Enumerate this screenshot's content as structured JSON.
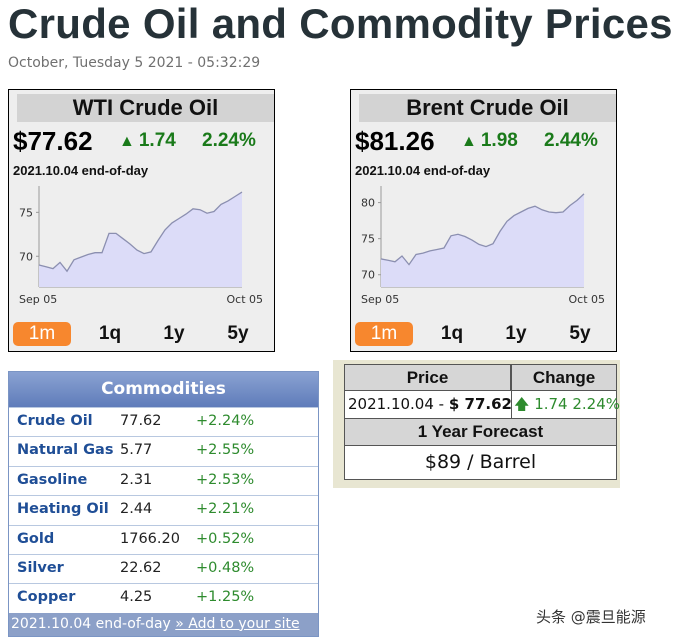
{
  "header": {
    "title": "Crude Oil and Commodity Prices",
    "datetime": "October, Tuesday 5 2021 - 05:32:29"
  },
  "wti": {
    "title": "WTI Crude Oil",
    "price": "$77.62",
    "change": "1.74",
    "change_pct": "2.24%",
    "eod": "2021.10.04 end-of-day",
    "chart_data": {
      "type": "area",
      "x_start_label": "Sep 05",
      "x_end_label": "Oct 05",
      "yticks": [
        70,
        75
      ],
      "ylim": [
        66.5,
        78
      ],
      "values": [
        69.0,
        68.8,
        68.6,
        69.3,
        68.3,
        69.6,
        69.9,
        70.2,
        70.4,
        70.4,
        72.6,
        72.6,
        72.0,
        71.4,
        70.7,
        70.3,
        70.5,
        71.8,
        73.0,
        73.8,
        74.3,
        74.8,
        75.4,
        75.3,
        74.9,
        75.1,
        75.9,
        76.3,
        76.8,
        77.3
      ]
    },
    "ranges": [
      "1m",
      "1q",
      "1y",
      "5y"
    ],
    "active_range": "1m"
  },
  "brent": {
    "title": "Brent Crude Oil",
    "price": "$81.26",
    "change": "1.98",
    "change_pct": "2.44%",
    "eod": "2021.10.04 end-of-day",
    "chart_data": {
      "type": "area",
      "x_start_label": "Sep 05",
      "x_end_label": "Oct 05",
      "yticks": [
        70,
        75,
        80
      ],
      "ylim": [
        68.3,
        82.3
      ],
      "values": [
        72.2,
        72.0,
        71.8,
        72.6,
        71.4,
        72.8,
        73.0,
        73.3,
        73.5,
        73.7,
        75.4,
        75.6,
        75.3,
        74.8,
        74.2,
        73.9,
        74.3,
        76.0,
        77.4,
        78.2,
        78.7,
        79.2,
        79.5,
        79.0,
        78.7,
        78.6,
        78.7,
        79.6,
        80.3,
        81.2
      ]
    },
    "ranges": [
      "1m",
      "1q",
      "1y",
      "5y"
    ],
    "active_range": "1m"
  },
  "commodities": {
    "title": "Commodities",
    "rows": [
      {
        "name": "Crude Oil",
        "value": "77.62",
        "change": "+2.24%"
      },
      {
        "name": "Natural Gas",
        "value": "5.77",
        "change": "+2.55%"
      },
      {
        "name": "Gasoline",
        "value": "2.31",
        "change": "+2.53%"
      },
      {
        "name": "Heating Oil",
        "value": "2.44",
        "change": "+2.21%"
      },
      {
        "name": "Gold",
        "value": "1766.20",
        "change": "+0.52%"
      },
      {
        "name": "Silver",
        "value": "22.62",
        "change": "+0.48%"
      },
      {
        "name": "Copper",
        "value": "4.25",
        "change": "+1.25%"
      }
    ],
    "footer_date": "2021.10.04 end-of-day",
    "footer_link": "» Add to your site"
  },
  "forecast": {
    "price_header": "Price",
    "change_header": "Change",
    "date_prefix": "2021.10.04 - ",
    "price": "$ 77.62",
    "change": "1.74 2.24%",
    "forecast_header": "1 Year Forecast",
    "forecast_value": "$89 / Barrel"
  },
  "watermark": "头条 @震旦能源",
  "colors": {
    "active_range": "#f7872e",
    "chart_fill": "#dcdcf8",
    "chart_line": "#8b8fb0",
    "up_green": "#1a7a1a",
    "link_blue": "#1f4e96"
  }
}
